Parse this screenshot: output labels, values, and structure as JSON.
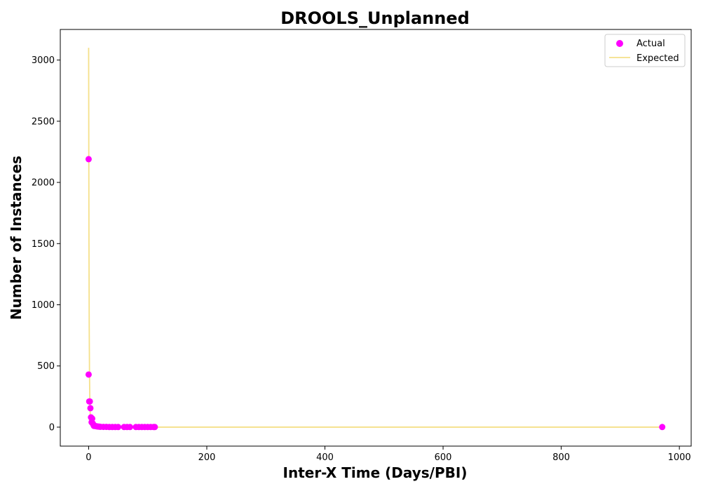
{
  "chart_data": {
    "type": "scatter",
    "title": "DROOLS_Unplanned",
    "xlabel": "Inter-X Time (Days/PBI)",
    "ylabel": "Number of Instances",
    "xlim": [
      -48,
      1020
    ],
    "ylim": [
      -155,
      3250
    ],
    "xticks": [
      0,
      200,
      400,
      600,
      800,
      1000
    ],
    "yticks": [
      0,
      500,
      1000,
      1500,
      2000,
      2500,
      3000
    ],
    "legend_placement": "top-right",
    "grid": false,
    "series": [
      {
        "name": "Actual",
        "kind": "scatter",
        "color": "#ff00ff",
        "points": [
          [
            0,
            2190
          ],
          [
            0,
            430
          ],
          [
            1,
            210
          ],
          [
            2,
            210
          ],
          [
            3,
            155
          ],
          [
            4,
            80
          ],
          [
            5,
            40
          ],
          [
            6,
            70
          ],
          [
            7,
            30
          ],
          [
            8,
            20
          ],
          [
            9,
            10
          ],
          [
            10,
            12
          ],
          [
            12,
            8
          ],
          [
            14,
            6
          ],
          [
            16,
            5
          ],
          [
            18,
            4
          ],
          [
            20,
            3
          ],
          [
            25,
            2
          ],
          [
            30,
            2
          ],
          [
            35,
            1
          ],
          [
            40,
            1
          ],
          [
            45,
            1
          ],
          [
            50,
            1
          ],
          [
            60,
            1
          ],
          [
            65,
            1
          ],
          [
            70,
            1
          ],
          [
            80,
            1
          ],
          [
            85,
            1
          ],
          [
            90,
            1
          ],
          [
            95,
            1
          ],
          [
            100,
            1
          ],
          [
            105,
            1
          ],
          [
            110,
            1
          ],
          [
            112,
            1
          ],
          [
            971,
            1
          ]
        ]
      },
      {
        "name": "Expected",
        "kind": "line",
        "color": "#f5e08a",
        "points": [
          [
            0,
            3100
          ],
          [
            0.5,
            1600
          ],
          [
            1,
            800
          ],
          [
            1.5,
            420
          ],
          [
            2,
            220
          ],
          [
            3,
            60
          ],
          [
            4,
            18
          ],
          [
            5,
            5
          ],
          [
            7,
            1
          ],
          [
            10,
            0
          ],
          [
            50,
            0
          ],
          [
            200,
            0
          ],
          [
            400,
            0
          ],
          [
            600,
            0
          ],
          [
            800,
            0
          ],
          [
            971,
            0
          ]
        ]
      }
    ]
  }
}
